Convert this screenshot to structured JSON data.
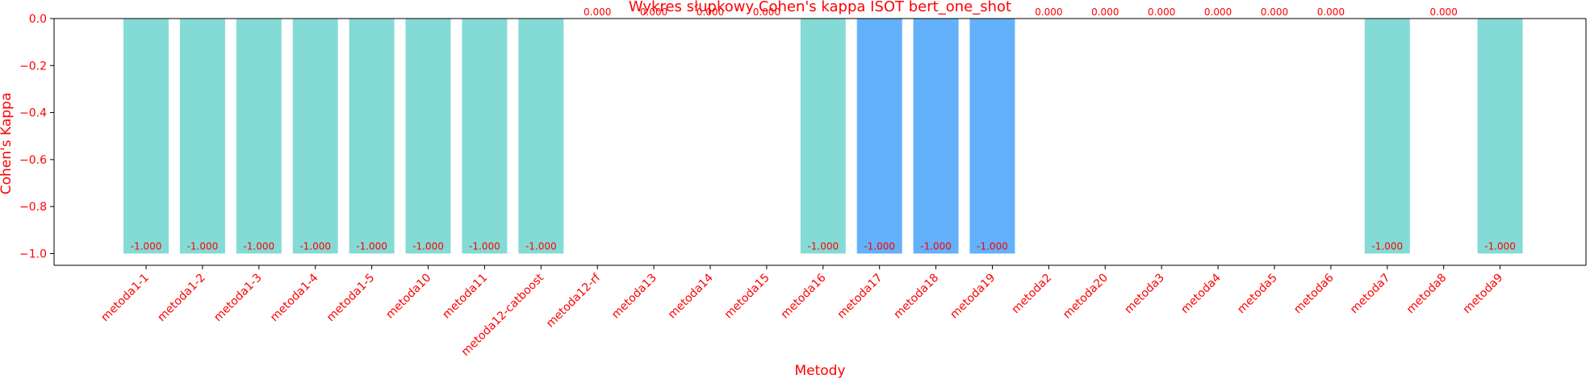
{
  "chart_data": {
    "type": "bar",
    "title": "Wykres słupkowy Cohen's kappa ISOT bert_one_shot",
    "xlabel": "Metody",
    "ylabel": "Cohen's Kappa",
    "ylim": [
      -1.05,
      0.0
    ],
    "yticks": [
      0.0,
      -0.2,
      -0.4,
      -0.6,
      -0.8,
      -1.0
    ],
    "ytick_labels": [
      "0.0",
      "−0.2",
      "−0.4",
      "−0.6",
      "−0.8",
      "−1.0"
    ],
    "grid": false,
    "categories": [
      "metoda1-1",
      "metoda1-2",
      "metoda1-3",
      "metoda1-4",
      "metoda1-5",
      "metoda10",
      "metoda11",
      "metoda12-catboost",
      "metoda12-rf",
      "metoda13",
      "metoda14",
      "metoda15",
      "metoda16",
      "metoda17",
      "metoda18",
      "metoda19",
      "metoda2",
      "metoda20",
      "metoda3",
      "metoda4",
      "metoda5",
      "metoda6",
      "metoda7",
      "metoda8",
      "metoda9"
    ],
    "values": [
      -1,
      -1,
      -1,
      -1,
      -1,
      -1,
      -1,
      -1,
      0,
      0,
      0,
      0,
      -1,
      -1,
      -1,
      -1,
      0,
      0,
      0,
      0,
      0,
      0,
      -1,
      0,
      -1
    ],
    "value_labels": [
      "-1.000",
      "-1.000",
      "-1.000",
      "-1.000",
      "-1.000",
      "-1.000",
      "-1.000",
      "-1.000",
      "0.000",
      "0.000",
      "0.000",
      "0.000",
      "-1.000",
      "-1.000",
      "-1.000",
      "-1.000",
      "0.000",
      "0.000",
      "0.000",
      "0.000",
      "0.000",
      "0.000",
      "-1.000",
      "0.000",
      "-1.000"
    ],
    "bar_colors": [
      "#84dbd5",
      "#84dbd5",
      "#84dbd5",
      "#84dbd5",
      "#84dbd5",
      "#84dbd5",
      "#84dbd5",
      "#84dbd5",
      "#84dbd5",
      "#84dbd5",
      "#84dbd5",
      "#84dbd5",
      "#84dbd5",
      "#63b1fb",
      "#63b1fb",
      "#63b1fb",
      "#84dbd5",
      "#84dbd5",
      "#84dbd5",
      "#84dbd5",
      "#84dbd5",
      "#84dbd5",
      "#84dbd5",
      "#84dbd5",
      "#84dbd5"
    ],
    "colors": {
      "text": "#ff0000",
      "axis": "#000000"
    }
  }
}
